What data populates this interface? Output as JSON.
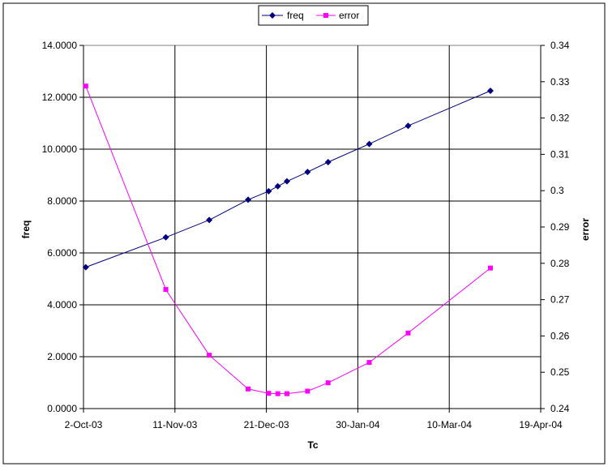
{
  "chart_data": {
    "type": "line",
    "xlabel": "Tc",
    "ylabel_left": "freq",
    "ylabel_right": "error",
    "x_ticks": [
      "2-Oct-03",
      "11-Nov-03",
      "21-Dec-03",
      "30-Jan-04",
      "10-Mar-04",
      "19-Apr-04"
    ],
    "x_tick_days": [
      0,
      40,
      80,
      120,
      160,
      200
    ],
    "y_left": {
      "min": 0,
      "max": 14,
      "ticks": [
        "0.0000",
        "2.0000",
        "4.0000",
        "6.0000",
        "8.0000",
        "10.0000",
        "12.0000",
        "14.0000"
      ]
    },
    "y_right": {
      "min": 0.24,
      "max": 0.34,
      "ticks": [
        "0.24",
        "0.25",
        "0.26",
        "0.27",
        "0.28",
        "0.29",
        "0.3",
        "0.31",
        "0.32",
        "0.33",
        "0.34"
      ]
    },
    "grid": true,
    "legend_position": "top-center",
    "series": [
      {
        "name": "freq",
        "axis": "left",
        "color": "#000080",
        "marker": "diamond",
        "x": [
          1,
          36,
          55,
          72,
          81,
          85,
          89,
          98,
          107,
          125,
          142,
          178
        ],
        "y": [
          5.45,
          6.6,
          7.27,
          8.05,
          8.38,
          8.57,
          8.76,
          9.12,
          9.5,
          10.2,
          10.9,
          12.25
        ]
      },
      {
        "name": "error",
        "axis": "right",
        "color": "#ff00ff",
        "marker": "square",
        "x": [
          1,
          36,
          55,
          72,
          81,
          85,
          89,
          98,
          107,
          125,
          142,
          178
        ],
        "y": [
          0.3288,
          0.2728,
          0.2547,
          0.2454,
          0.2442,
          0.2441,
          0.2441,
          0.2448,
          0.2471,
          0.2527,
          0.2608,
          0.2787
        ]
      }
    ]
  }
}
